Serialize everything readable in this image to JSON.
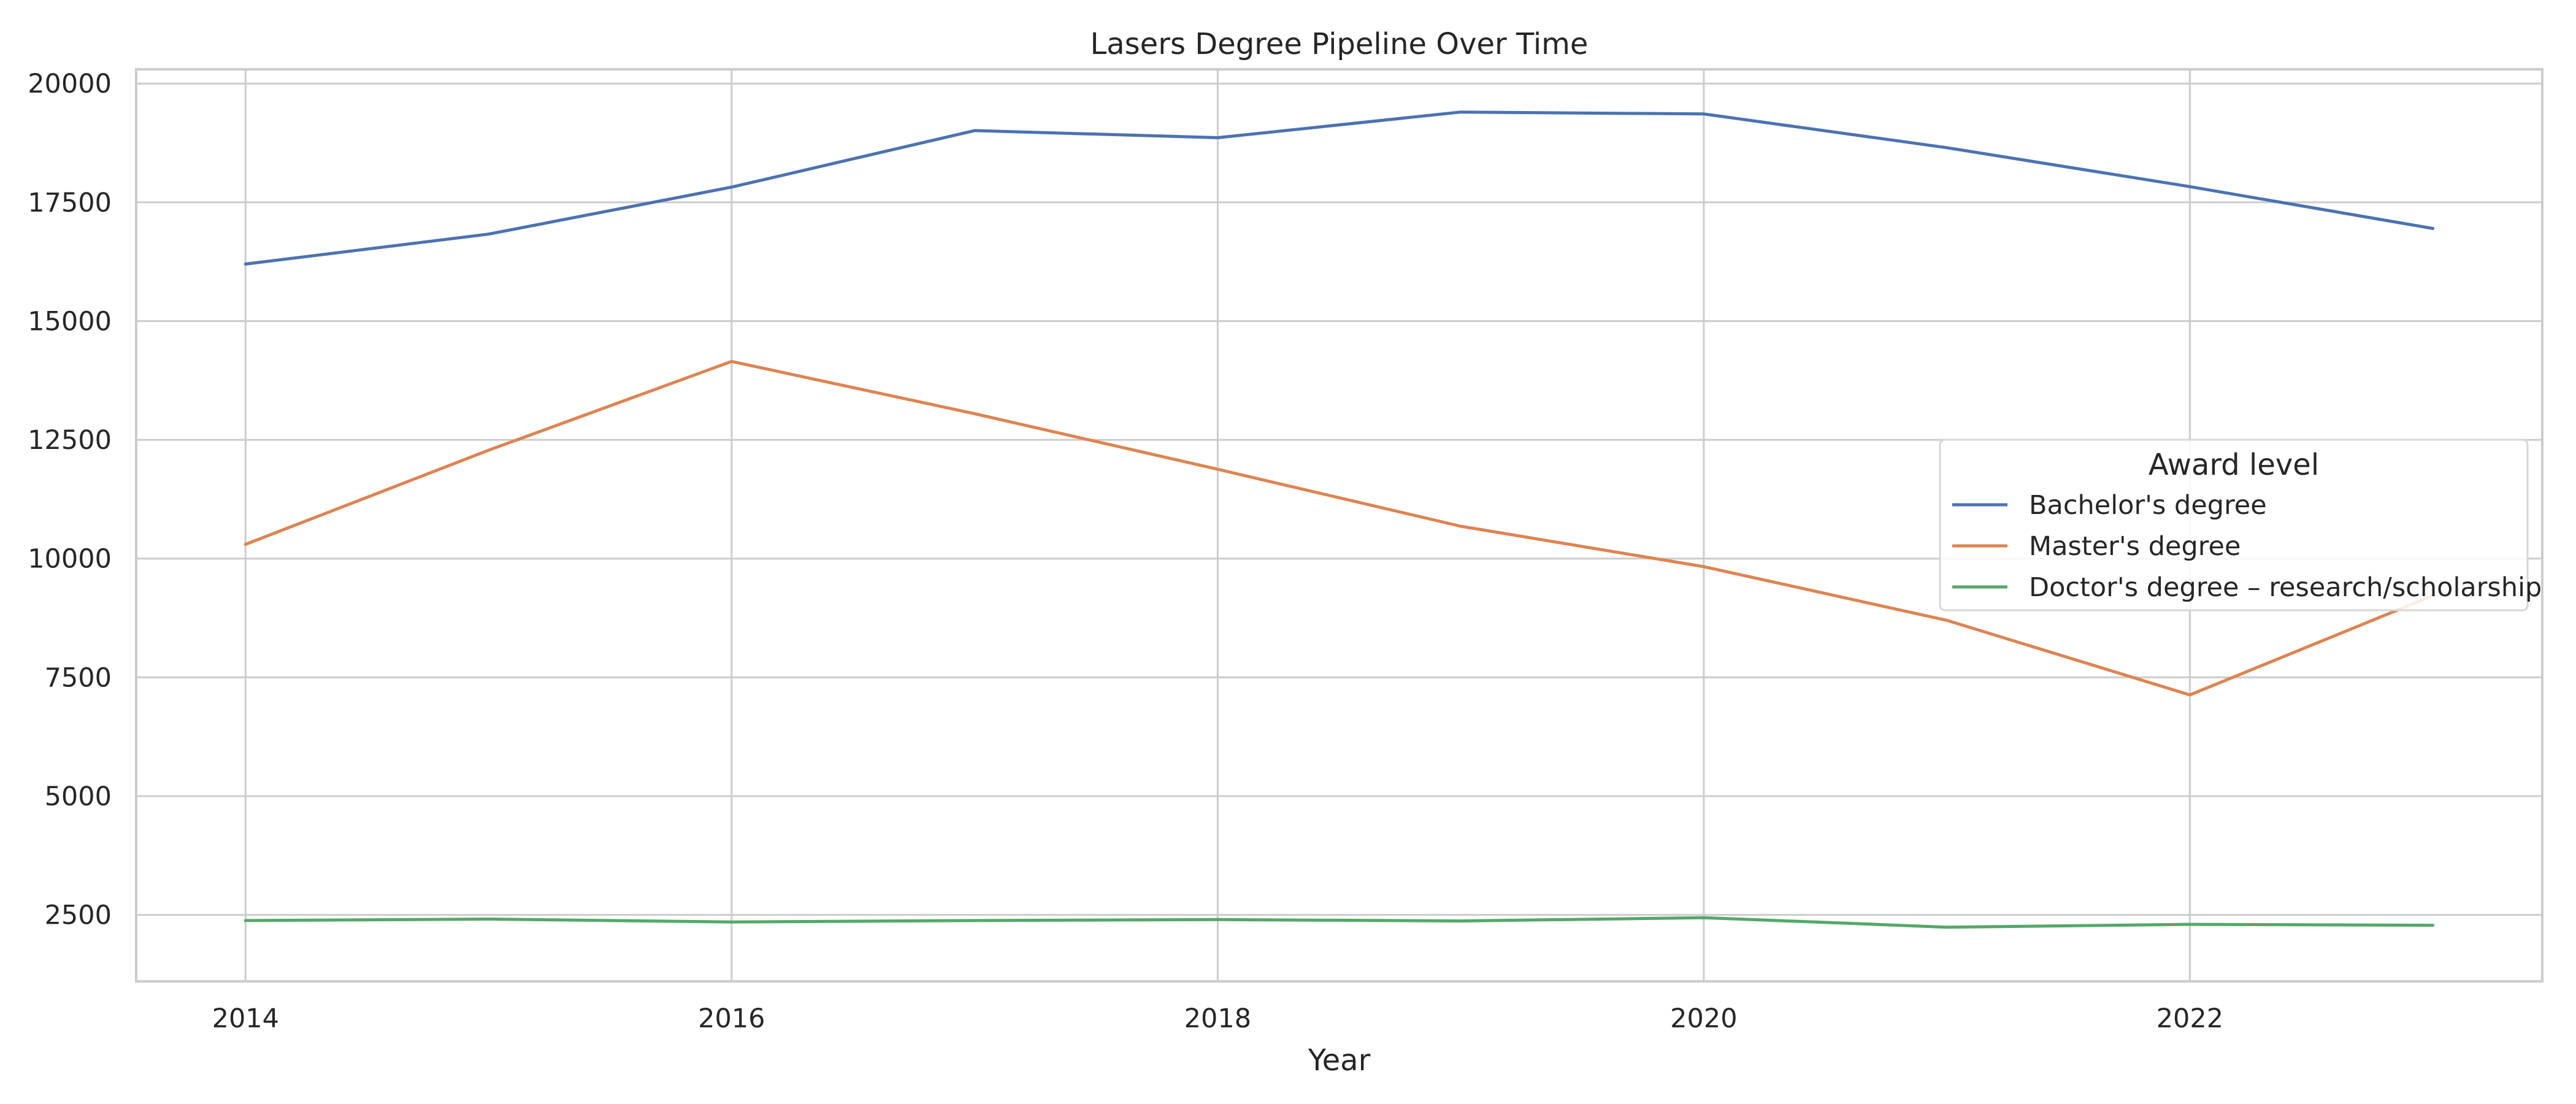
{
  "chart_data": {
    "type": "line",
    "title": "Lasers Degree Pipeline Over Time",
    "xlabel": "Year",
    "ylabel": "",
    "x": [
      2014,
      2015,
      2016,
      2017,
      2018,
      2019,
      2020,
      2021,
      2022,
      2023
    ],
    "xlim": [
      2013.55,
      2023.45
    ],
    "ylim": [
      1100,
      20300
    ],
    "xticks": [
      2014,
      2016,
      2018,
      2020,
      2022
    ],
    "yticks": [
      2500,
      5000,
      7500,
      10000,
      12500,
      15000,
      17500,
      20000
    ],
    "grid": true,
    "legend": {
      "title": "Award level",
      "placement": "center-right"
    },
    "series": [
      {
        "name": "Bachelor's degree",
        "color": "#4c72b0",
        "values": [
          16200,
          16830,
          17820,
          19010,
          18860,
          19400,
          19360,
          18650,
          17830,
          16950
        ]
      },
      {
        "name": "Master's degree",
        "color": "#dd8452",
        "values": [
          10300,
          12280,
          14150,
          13050,
          11880,
          10680,
          9830,
          8700,
          7130,
          9220
        ]
      },
      {
        "name": "Doctor's degree – research/scholarship",
        "color": "#55a868",
        "values": [
          2380,
          2410,
          2350,
          2380,
          2400,
          2370,
          2440,
          2240,
          2300,
          2280
        ]
      }
    ]
  }
}
